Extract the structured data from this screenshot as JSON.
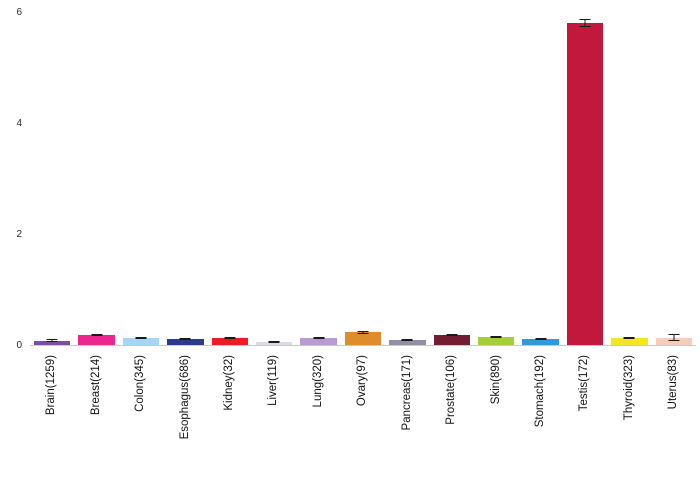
{
  "chart_data": {
    "type": "bar",
    "title": "",
    "xlabel": "",
    "ylabel": "",
    "ylim": [
      0,
      6
    ],
    "yticks": [
      0,
      2,
      4,
      6
    ],
    "ytick_labels": [
      "0",
      "2",
      "4",
      "6"
    ],
    "grid": false,
    "legend": false,
    "categories": [
      "Brain(1259)",
      "Breast(214)",
      "Colon(345)",
      "Esophagus(686)",
      "Kidney(32)",
      "Liver(119)",
      "Lung(320)",
      "Ovary(97)",
      "Pancreas(171)",
      "Prostate(106)",
      "Skin(890)",
      "Stomach(192)",
      "Testis(172)",
      "Thyroid(323)",
      "Uterus(83)"
    ],
    "values": [
      0.08,
      0.18,
      0.13,
      0.11,
      0.13,
      0.06,
      0.12,
      0.23,
      0.09,
      0.18,
      0.14,
      0.11,
      5.8,
      0.13,
      0.13
    ],
    "errors": [
      0.02,
      0.02,
      0.02,
      0.02,
      0.02,
      0.015,
      0.02,
      0.03,
      0.02,
      0.02,
      0.02,
      0.02,
      0.07,
      0.02,
      0.06
    ],
    "bar_colors": [
      "#7e4f9e",
      "#ec268f",
      "#a6d6f5",
      "#2b3990",
      "#ed1c24",
      "#dcd9e9",
      "#b79bd1",
      "#de8c2c",
      "#918fa3",
      "#731d33",
      "#a6ce39",
      "#2e9bd6",
      "#c2183c",
      "#f2e521",
      "#f5cdb9"
    ],
    "error_color": "#1a1a1a",
    "axis_line_color": "#c9c9c9",
    "background_color": "#ffffff"
  }
}
